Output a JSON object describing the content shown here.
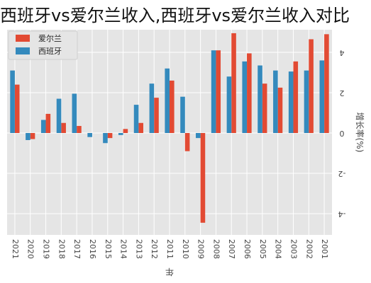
{
  "title": "西班牙vs爱尔兰收入,西班牙vs爱尔兰收入对比",
  "chart_data": {
    "type": "bar",
    "orientation": "rotated",
    "categories": [
      "2021",
      "2020",
      "2019",
      "2018",
      "2017",
      "2016",
      "2015",
      "2014",
      "2013",
      "2012",
      "2011",
      "2010",
      "2009",
      "2008",
      "2007",
      "2006",
      "2005",
      "2004",
      "2003",
      "2002",
      "2001"
    ],
    "series": [
      {
        "name": "爱尔兰",
        "color": "#e24a33",
        "values": [
          2.4,
          -0.3,
          0.95,
          0.5,
          0.35,
          0,
          -0.25,
          0.2,
          0.5,
          1.75,
          2.6,
          -0.9,
          -4.45,
          4.1,
          4.95,
          3.95,
          2.45,
          2.25,
          3.55,
          4.65,
          4.9
        ]
      },
      {
        "name": "西班牙",
        "color": "#348abd",
        "values": [
          3.1,
          -0.35,
          0.65,
          1.7,
          1.95,
          -0.2,
          -0.5,
          -0.1,
          1.4,
          2.45,
          3.2,
          1.8,
          -0.25,
          4.1,
          2.8,
          3.55,
          3.35,
          3.1,
          3.05,
          3.1,
          3.6
        ]
      }
    ],
    "ytick_labels": [
      "-4",
      "-2",
      "0",
      "2",
      "4"
    ],
    "ylabel": "增长率(%)",
    "xlabel": "年",
    "ylim": [
      -4.5,
      5.2
    ],
    "grid": true,
    "legend": "top-left"
  }
}
